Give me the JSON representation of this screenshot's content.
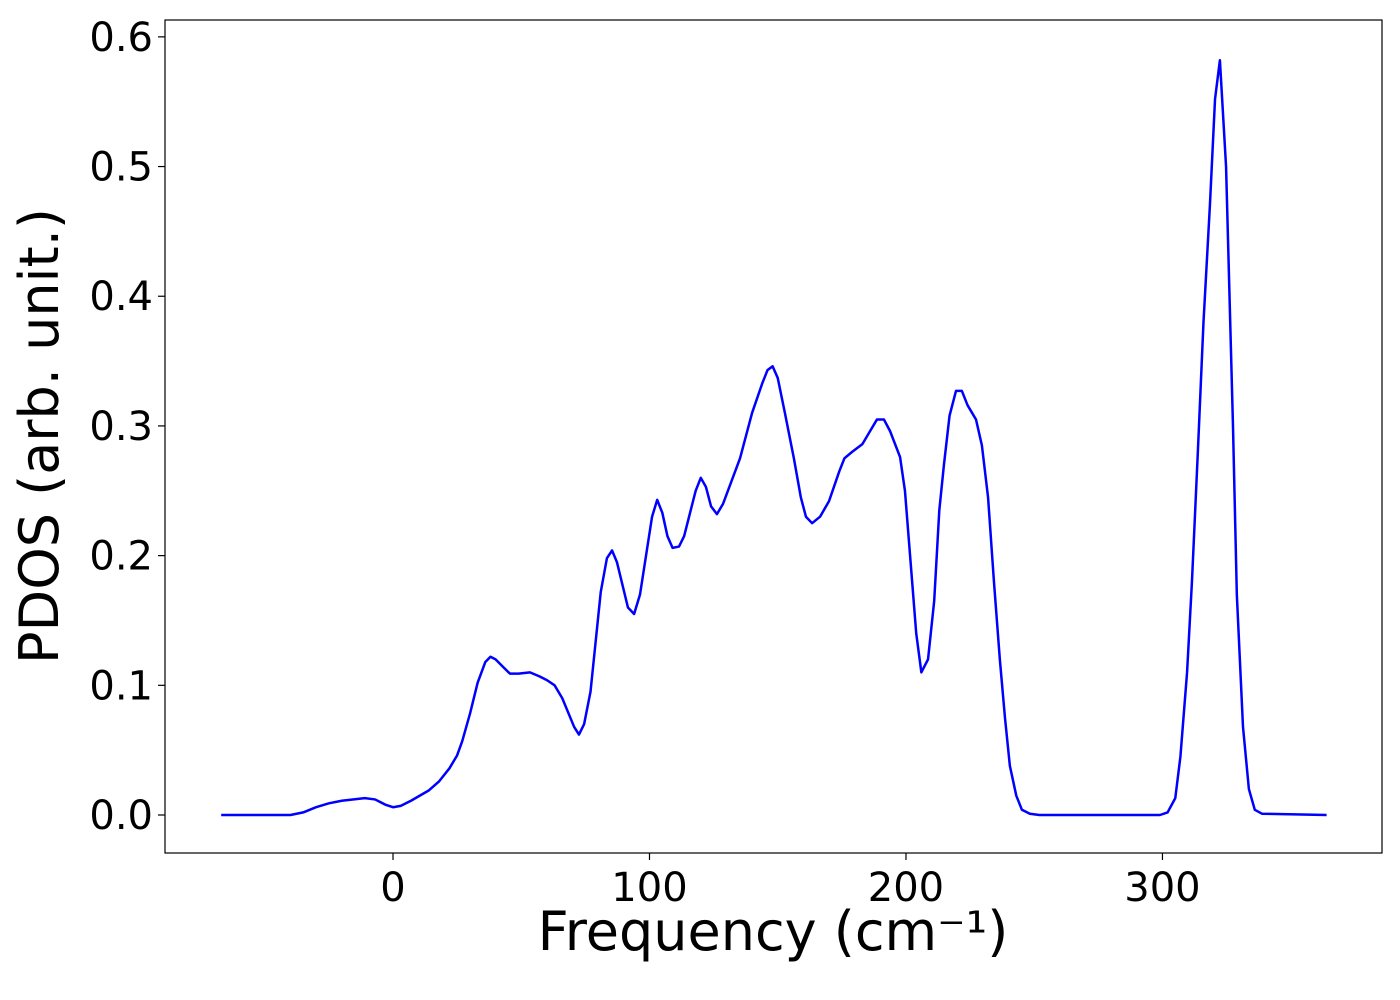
{
  "chart_data": {
    "type": "line",
    "xlabel": "Frequency (cm⁻¹)",
    "ylabel": "PDOS (arb. unit.)",
    "xlim": [
      -88.9,
      385.6
    ],
    "ylim": [
      -0.0293,
      0.613
    ],
    "xticks": [
      0,
      100,
      200,
      300
    ],
    "yticks": [
      {
        "value": 0,
        "label": "0.0"
      },
      0.1,
      0.2,
      0.3,
      0.4,
      0.5,
      0.6
    ],
    "series": [
      {
        "color": "#0000ff",
        "x": [
          -67,
          -40,
          -35,
          -30,
          -25,
          -20,
          -11,
          -7,
          -3,
          0,
          3,
          7,
          14,
          18,
          22,
          25,
          27,
          30,
          33,
          36,
          38,
          40,
          43,
          45.6,
          49,
          53.4,
          57,
          60,
          63,
          66,
          70.6,
          72.5,
          74.5,
          77,
          81,
          83.4,
          85.4,
          87.3,
          91.6,
          94,
          96.3,
          101,
          103,
          105,
          107,
          109,
          111.5,
          113.5,
          118,
          120,
          122,
          124,
          126.3,
          128.7,
          135.3,
          140,
          144,
          146,
          148,
          150,
          152.8,
          156.3,
          159,
          161,
          163.4,
          166.5,
          170,
          174,
          176,
          179,
          183,
          186,
          188.7,
          191.4,
          193.8,
          197.7,
          199.6,
          201.6,
          204,
          206,
          208.6,
          211,
          213,
          214.8,
          217,
          219.5,
          221.8,
          224,
          227.3,
          229.6,
          232,
          234.3,
          236.6,
          238.6,
          240.5,
          243,
          245.2,
          248.3,
          252,
          299,
          302,
          305,
          307,
          309.6,
          311.5,
          313.8,
          316,
          318.5,
          320.5,
          322.4,
          324.8,
          327.5,
          329,
          331.4,
          333.7,
          336,
          338.8,
          364
        ],
        "values": [
          0,
          0,
          0.002,
          0.006,
          0.009,
          0.011,
          0.013,
          0.012,
          0.008,
          0.006,
          0.007,
          0.011,
          0.019,
          0.026,
          0.036,
          0.046,
          0.057,
          0.078,
          0.102,
          0.118,
          0.122,
          0.12,
          0.114,
          0.109,
          0.109,
          0.11,
          0.107,
          0.104,
          0.1,
          0.09,
          0.068,
          0.062,
          0.07,
          0.095,
          0.172,
          0.198,
          0.204,
          0.195,
          0.16,
          0.155,
          0.17,
          0.23,
          0.243,
          0.233,
          0.215,
          0.206,
          0.207,
          0.215,
          0.25,
          0.26,
          0.253,
          0.238,
          0.232,
          0.24,
          0.275,
          0.31,
          0.333,
          0.343,
          0.346,
          0.337,
          0.31,
          0.275,
          0.245,
          0.23,
          0.225,
          0.23,
          0.242,
          0.265,
          0.275,
          0.28,
          0.286,
          0.296,
          0.305,
          0.305,
          0.296,
          0.276,
          0.25,
          0.2,
          0.14,
          0.11,
          0.12,
          0.165,
          0.235,
          0.27,
          0.308,
          0.327,
          0.327,
          0.316,
          0.305,
          0.285,
          0.245,
          0.18,
          0.12,
          0.075,
          0.038,
          0.015,
          0.004,
          0.001,
          0,
          0,
          0.002,
          0.013,
          0.045,
          0.11,
          0.18,
          0.28,
          0.38,
          0.47,
          0.552,
          0.582,
          0.5,
          0.3,
          0.17,
          0.068,
          0.02,
          0.004,
          0.001,
          0
        ]
      }
    ]
  }
}
